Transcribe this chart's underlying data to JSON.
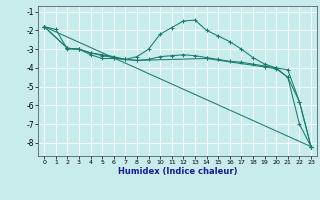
{
  "xlabel": "Humidex (Indice chaleur)",
  "ylabel": "",
  "bg_color": "#c8ecec",
  "grid_color": "#ffffff",
  "line_color": "#1a7a6e",
  "xlim": [
    -0.5,
    23.5
  ],
  "ylim": [
    -8.7,
    -0.7
  ],
  "yticks": [
    -1,
    -2,
    -3,
    -4,
    -5,
    -6,
    -7,
    -8
  ],
  "xticks": [
    0,
    1,
    2,
    3,
    4,
    5,
    6,
    7,
    8,
    9,
    10,
    11,
    12,
    13,
    14,
    15,
    16,
    17,
    18,
    19,
    20,
    21,
    22,
    23
  ],
  "lines": [
    {
      "x": [
        0,
        1,
        2,
        3,
        4,
        5,
        6,
        7,
        8,
        9,
        10,
        11,
        12,
        13,
        14,
        15,
        16,
        17,
        18,
        19,
        20,
        21,
        22,
        23
      ],
      "y": [
        -1.8,
        -1.95,
        -3.0,
        -3.0,
        -3.3,
        -3.5,
        -3.5,
        -3.55,
        -3.4,
        -3.0,
        -2.2,
        -1.85,
        -1.5,
        -1.45,
        -2.0,
        -2.3,
        -2.6,
        -3.0,
        -3.45,
        -3.8,
        -4.0,
        -4.5,
        -7.0,
        -8.2
      ]
    },
    {
      "x": [
        0,
        2,
        3,
        4,
        5,
        6,
        7,
        8,
        9,
        10,
        11,
        12,
        13,
        14,
        15,
        16,
        17,
        18,
        19,
        20,
        21,
        22,
        23
      ],
      "y": [
        -1.8,
        -2.95,
        -3.0,
        -3.2,
        -3.35,
        -3.45,
        -3.55,
        -3.6,
        -3.55,
        -3.4,
        -3.35,
        -3.3,
        -3.35,
        -3.45,
        -3.55,
        -3.65,
        -3.7,
        -3.8,
        -3.9,
        -4.0,
        -4.1,
        -5.8,
        -8.2
      ]
    },
    {
      "x": [
        0,
        2,
        3,
        4,
        5,
        6,
        7,
        8,
        14,
        19,
        20,
        21,
        22,
        23
      ],
      "y": [
        -1.8,
        -2.95,
        -3.0,
        -3.2,
        -3.3,
        -3.4,
        -3.55,
        -3.6,
        -3.5,
        -3.95,
        -4.05,
        -4.5,
        -5.8,
        -8.2
      ]
    },
    {
      "x": [
        0,
        23
      ],
      "y": [
        -1.8,
        -8.2
      ]
    }
  ]
}
